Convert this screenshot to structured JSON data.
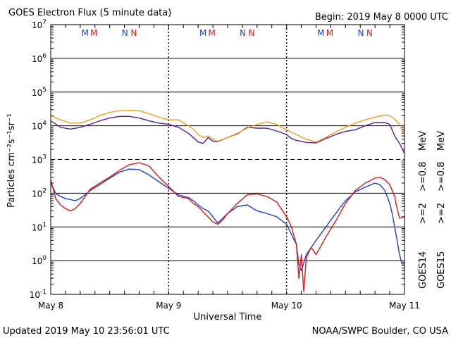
{
  "header": {
    "title": "GOES Electron Flux (5 minute data)",
    "begin": "Begin: 2019 May 8 0000 UTC"
  },
  "footer": {
    "updated": "Updated 2019 May 10 23:56:01 UTC",
    "credit": "NOAA/SWPC Boulder, CO USA"
  },
  "colors": {
    "goes14_2mev": "#1c3fd6",
    "goes15_2mev": "#e3140f",
    "goes14_08mev": "#5a1d96",
    "goes15_08mev": "#f0a020",
    "marker_m": [
      "#1c3fd6",
      "#e3140f"
    ],
    "marker_n": [
      "#1c3fd6",
      "#e3140f"
    ]
  },
  "legend": [
    {
      "sat": "GOES14",
      "e1": ">=2",
      "e2": ">=0.8",
      "unit": "MeV",
      "c1": "#1c3fd6",
      "c2": "#5a1d96"
    },
    {
      "sat": "GOES15",
      "e1": ">=2",
      "e2": ">=0.8",
      "unit": "MeV",
      "c1": "#e3140f",
      "c2": "#f0a020"
    }
  ],
  "chart_data": {
    "type": "line",
    "title": "GOES Electron Flux (5 minute data)",
    "xlabel": "Universal Time",
    "ylabel": "Particles cm⁻²s⁻¹sr⁻¹",
    "yscale": "log",
    "ylim": [
      0.1,
      10000000
    ],
    "xlim": [
      "2019-05-08T00:00",
      "2019-05-11T00:00"
    ],
    "x_ticks": [
      "May 8",
      "May 9",
      "May 10",
      "May 11"
    ],
    "y_ticks": [
      {
        "base": "10",
        "exp": "7"
      },
      {
        "base": "10",
        "exp": "6"
      },
      {
        "base": "10",
        "exp": "5"
      },
      {
        "base": "10",
        "exp": "4"
      },
      {
        "base": "10",
        "exp": "3"
      },
      {
        "base": "10",
        "exp": "2"
      },
      {
        "base": "10",
        "exp": "1"
      },
      {
        "base": "10",
        "exp": "0"
      },
      {
        "base": "10",
        "exp": "-1"
      }
    ],
    "threshold": 1000,
    "grid": true,
    "markers": [
      {
        "label": "M",
        "hours": [
          7.0,
          8.8
        ]
      },
      {
        "label": "N",
        "hours": [
          15.1,
          16.9
        ]
      },
      {
        "label": "M",
        "hours": [
          31.0,
          32.8
        ]
      },
      {
        "label": "N",
        "hours": [
          39.1,
          40.9
        ]
      },
      {
        "label": "M",
        "hours": [
          55.0,
          56.8
        ]
      },
      {
        "label": "N",
        "hours": [
          63.1,
          64.9
        ]
      }
    ],
    "series": [
      {
        "name": "GOES14 >=0.8 MeV",
        "hours": [
          0,
          2,
          4,
          6,
          8,
          10,
          12,
          14,
          16,
          18,
          20,
          22,
          24,
          26,
          28,
          29,
          30,
          31,
          31.5,
          32,
          33,
          34,
          36,
          38,
          40,
          42,
          44,
          46,
          48,
          49,
          50,
          52,
          54,
          56,
          58,
          60,
          62,
          64,
          66,
          68,
          69,
          70,
          71,
          72
        ],
        "values": [
          14000,
          9000,
          8000,
          9000,
          11000,
          14000,
          17000,
          19000,
          19000,
          17000,
          14000,
          12000,
          11000,
          9000,
          6000,
          4500,
          3300,
          3000,
          3600,
          4500,
          3500,
          3400,
          4500,
          5800,
          9000,
          8500,
          8500,
          7000,
          5500,
          4200,
          3700,
          3200,
          3100,
          4200,
          5500,
          6800,
          7600,
          10000,
          12500,
          12500,
          11000,
          5000,
          3000,
          1500
        ]
      },
      {
        "name": "GOES15 >=0.8 MeV",
        "hours": [
          0,
          2,
          4,
          6,
          8,
          10,
          12,
          14,
          16,
          18,
          20,
          22,
          24,
          26,
          28,
          29,
          30,
          31,
          32,
          33,
          34,
          36,
          38,
          40,
          42,
          44,
          46,
          48,
          50,
          52,
          54,
          56,
          58,
          60,
          62,
          64,
          66,
          68,
          69,
          70,
          71,
          72
        ],
        "values": [
          20000,
          15000,
          12000,
          12000,
          15000,
          20000,
          25000,
          28000,
          29000,
          28000,
          23000,
          18000,
          15000,
          15000,
          10000,
          8000,
          5500,
          4500,
          5000,
          4000,
          3500,
          4500,
          6000,
          8500,
          11000,
          13000,
          11000,
          7500,
          5500,
          4000,
          3300,
          4500,
          6500,
          9000,
          12000,
          15000,
          18000,
          21000,
          20000,
          16000,
          11000,
          5500
        ]
      },
      {
        "name": "GOES14 >=2 MeV",
        "hours": [
          0,
          1,
          2,
          3,
          4,
          5,
          6,
          7,
          8,
          10,
          12,
          14,
          16,
          18,
          20,
          22,
          24,
          26,
          28,
          29,
          30,
          31,
          32,
          33,
          34,
          35,
          36,
          38,
          40,
          42,
          44,
          46,
          48,
          49,
          50,
          50.5,
          51,
          52,
          54,
          56,
          58,
          60,
          62,
          64,
          66,
          67,
          68,
          69,
          69.5,
          70,
          70.5,
          71,
          71.5,
          72
        ],
        "values": [
          200,
          100,
          80,
          70,
          65,
          60,
          70,
          90,
          120,
          180,
          280,
          420,
          520,
          500,
          350,
          220,
          140,
          90,
          75,
          60,
          45,
          35,
          30,
          20,
          13,
          18,
          25,
          40,
          45,
          30,
          25,
          20,
          12,
          6,
          3,
          0.8,
          0.5,
          1.5,
          4,
          10,
          25,
          60,
          110,
          150,
          200,
          180,
          120,
          50,
          25,
          10,
          4,
          1.5,
          0.8,
          0.8
        ]
      },
      {
        "name": "GOES15 >=2 MeV",
        "hours": [
          0,
          1,
          2,
          3,
          4,
          5,
          6,
          7,
          8,
          10,
          12,
          14,
          16,
          18,
          20,
          22,
          24,
          26,
          28,
          29,
          30,
          31,
          32,
          33,
          34,
          35,
          36,
          38,
          40,
          42,
          44,
          46,
          48,
          49,
          50,
          50.5,
          51,
          51.5,
          52,
          53,
          54,
          56,
          58,
          60,
          62,
          64,
          66,
          67,
          68,
          69,
          70,
          70.5,
          71,
          72
        ],
        "values": [
          250,
          70,
          45,
          35,
          30,
          35,
          50,
          80,
          130,
          200,
          300,
          480,
          700,
          800,
          650,
          300,
          160,
          80,
          70,
          50,
          40,
          28,
          20,
          14,
          12,
          16,
          25,
          50,
          90,
          95,
          80,
          55,
          20,
          10,
          3,
          0.3,
          1.5,
          0.12,
          1.2,
          2.5,
          1.5,
          5,
          15,
          50,
          120,
          200,
          280,
          300,
          250,
          180,
          80,
          35,
          18,
          20
        ]
      }
    ]
  }
}
